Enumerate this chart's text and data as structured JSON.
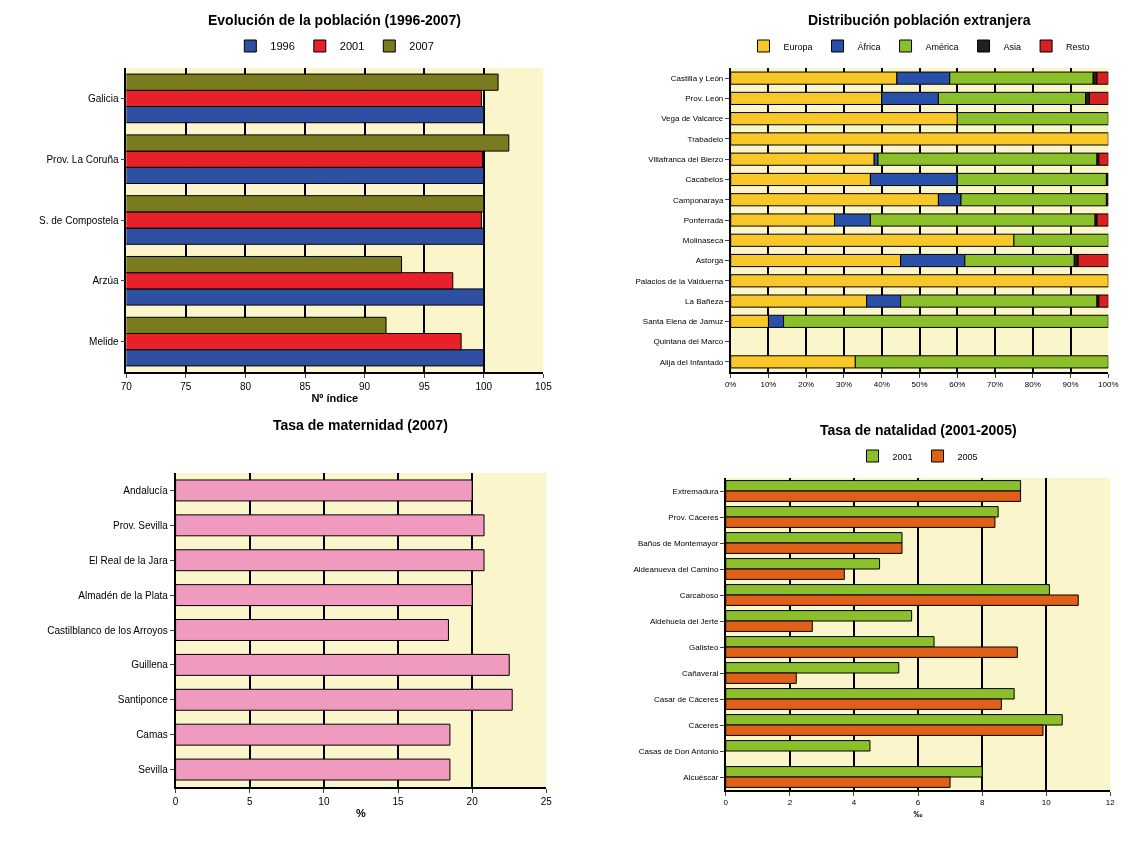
{
  "chart_data": [
    {
      "type": "bar",
      "orientation": "horizontal",
      "title": "Evolución de la población (1996-2007)",
      "xlabel": "Nº índice",
      "categories": [
        "Galicia",
        "Prov. La Coruña",
        "S. de Compostela",
        "Arzúa",
        "Melide"
      ],
      "series": [
        {
          "name": "1996",
          "color": "#2f4fa3",
          "values": [
            100,
            100,
            100,
            100,
            100
          ]
        },
        {
          "name": "2001",
          "color": "#e8202a",
          "values": [
            99.8,
            99.9,
            99.8,
            97.4,
            98.1
          ]
        },
        {
          "name": "2007",
          "color": "#7a7a1e",
          "values": [
            101.2,
            102.1,
            100,
            93.1,
            91.8
          ]
        }
      ],
      "xlim": [
        70,
        105
      ],
      "xticks": [
        70,
        75,
        80,
        85,
        90,
        95,
        100,
        105
      ],
      "grid": "x",
      "legend": "top"
    },
    {
      "type": "bar",
      "orientation": "horizontal",
      "stacked": true,
      "title": "Distribución población extranjera",
      "categories": [
        "Castilla y León",
        "Prov. León",
        "Vega de Valcarce",
        "Trabadelo",
        "Villafranca del Bierzo",
        "Cacabelos",
        "Camponaraya",
        "Ponferrada",
        "Molinaseca",
        "Astorga",
        "Palacios de la Valduerna",
        "La Bañeza",
        "Santa Elena de Jamuz",
        "Quintana del Marco",
        "Alija del Infantado"
      ],
      "series": [
        {
          "name": "Europa",
          "color": "#f8c828",
          "values": [
            44,
            40,
            60,
            100,
            38,
            37,
            55,
            27.5,
            75,
            45,
            100,
            36,
            10,
            null,
            33
          ]
        },
        {
          "name": "África",
          "color": "#2850a8",
          "values": [
            14,
            15,
            0,
            0,
            1,
            23,
            6,
            9.5,
            0,
            17,
            0,
            9,
            4,
            null,
            0
          ]
        },
        {
          "name": "América",
          "color": "#8cc02a",
          "values": [
            38,
            39,
            40,
            0,
            58,
            39.5,
            38.5,
            59.5,
            25,
            29,
            0,
            52,
            86,
            null,
            67
          ]
        },
        {
          "name": "Asia",
          "color": "#202020",
          "values": [
            1,
            1,
            0,
            0,
            0.5,
            0.5,
            0.5,
            0.5,
            0,
            1,
            0,
            0.5,
            0,
            null,
            0
          ]
        },
        {
          "name": "Resto",
          "color": "#d82020",
          "values": [
            3,
            5,
            0,
            0,
            2.5,
            0,
            0,
            3,
            0,
            8,
            0,
            2.5,
            0,
            null,
            0
          ]
        }
      ],
      "xlim": [
        0,
        100
      ],
      "xticks": [
        {
          "value": 0,
          "label": "0%"
        },
        {
          "value": 10,
          "label": "10%"
        },
        {
          "value": 20,
          "label": "20%"
        },
        {
          "value": 30,
          "label": "30%"
        },
        {
          "value": 40,
          "label": "40%"
        },
        {
          "value": 50,
          "label": "50%"
        },
        {
          "value": 60,
          "label": "60%"
        },
        {
          "value": 70,
          "label": "70%"
        },
        {
          "value": 80,
          "label": "80%"
        },
        {
          "value": 90,
          "label": "90%"
        },
        {
          "value": 100,
          "label": "100%"
        }
      ],
      "grid": "x",
      "legend": "top"
    },
    {
      "type": "bar",
      "orientation": "horizontal",
      "title": "Tasa de maternidad (2007)",
      "xlabel": "%",
      "categories": [
        "Andalucía",
        "Prov. Sevilla",
        "El Real de la Jara",
        "Almadén de la Plata",
        "Castilblanco de los Arroyos",
        "Guillena",
        "Santiponce",
        "Camas",
        "Sevilla"
      ],
      "series": [
        {
          "color": "#f09ac0",
          "values": [
            20,
            20.8,
            20.8,
            20,
            18.4,
            22.5,
            22.7,
            18.5,
            18.5
          ]
        }
      ],
      "xlim": [
        0,
        25
      ],
      "xticks": [
        0,
        5,
        10,
        15,
        20,
        25
      ],
      "grid": "x"
    },
    {
      "type": "bar",
      "orientation": "horizontal",
      "title": "Tasa de natalidad (2001-2005)",
      "xlabel": "‰",
      "categories": [
        "Extremadura",
        "Prov. Cáceres",
        "Baños de Montemayor",
        "Aldeanueva del Camino",
        "Carcaboso",
        "Aldehuela del Jerte",
        "Galisteo",
        "Cañaveral",
        "Casar de Cáceres",
        "Cáceres",
        "Casas de Don Antonio",
        "Alcuéscar"
      ],
      "series": [
        {
          "name": "2001",
          "color": "#8cc02a",
          "values": [
            9.2,
            8.5,
            5.5,
            4.8,
            10.1,
            5.8,
            6.5,
            5.4,
            9.0,
            10.5,
            4.5,
            8.0
          ]
        },
        {
          "name": "2005",
          "color": "#e0601a",
          "values": [
            9.2,
            8.4,
            5.5,
            3.7,
            11.0,
            2.7,
            9.1,
            2.2,
            8.6,
            9.9,
            null,
            7.0
          ]
        }
      ],
      "xlim": [
        0,
        12
      ],
      "xticks": [
        0,
        2,
        4,
        6,
        8,
        10,
        12
      ],
      "grid": "x",
      "legend": "top"
    }
  ]
}
